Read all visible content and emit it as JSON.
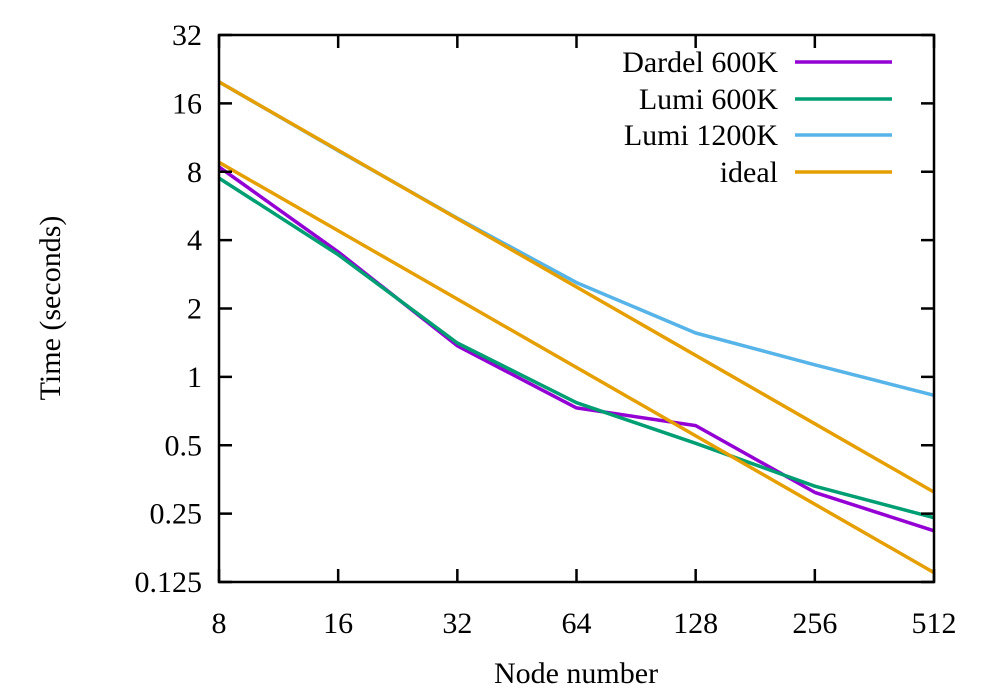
{
  "chart_data": {
    "type": "line",
    "title": "",
    "xlabel": "Node number",
    "ylabel": "Time (seconds)",
    "x_scale": "log2",
    "y_scale": "log2",
    "xlim": [
      8,
      512
    ],
    "ylim": [
      0.125,
      32
    ],
    "grid": false,
    "legend_position": "top-right-inside",
    "x_ticks": [
      "8",
      "16",
      "32",
      "64",
      "128",
      "256",
      "512"
    ],
    "y_ticks": [
      "32",
      "16",
      "8",
      "4",
      "2",
      "1",
      "0.5",
      "0.25",
      "0.125"
    ],
    "axis_color": "#000000",
    "series": [
      {
        "name": "Dardel 600K",
        "color": "#9400d3",
        "segments": [
          {
            "x": [
              8,
              16,
              32,
              64,
              128,
              256,
              512
            ],
            "y": [
              8.4,
              3.55,
              1.37,
              0.73,
              0.61,
              0.31,
              0.21
            ]
          }
        ]
      },
      {
        "name": "Lumi 600K",
        "color": "#009e73",
        "segments": [
          {
            "x": [
              8,
              16,
              32,
              64,
              128,
              256,
              512
            ],
            "y": [
              7.5,
              3.45,
              1.41,
              0.77,
              0.51,
              0.33,
              0.24
            ]
          }
        ]
      },
      {
        "name": "Lumi 1200K",
        "color": "#56b4e9",
        "segments": [
          {
            "x": [
              8,
              16,
              32,
              64,
              128,
              256,
              512
            ],
            "y": [
              19.9,
              9.9,
              5.0,
              2.6,
              1.56,
              1.13,
              0.83
            ]
          }
        ]
      },
      {
        "name": "ideal",
        "color": "#e69f00",
        "segments": [
          {
            "x": [
              8,
              512
            ],
            "y": [
              19.9,
              0.311
            ]
          },
          {
            "x": [
              8,
              512
            ],
            "y": [
              8.8,
              0.1375
            ]
          }
        ]
      }
    ]
  }
}
